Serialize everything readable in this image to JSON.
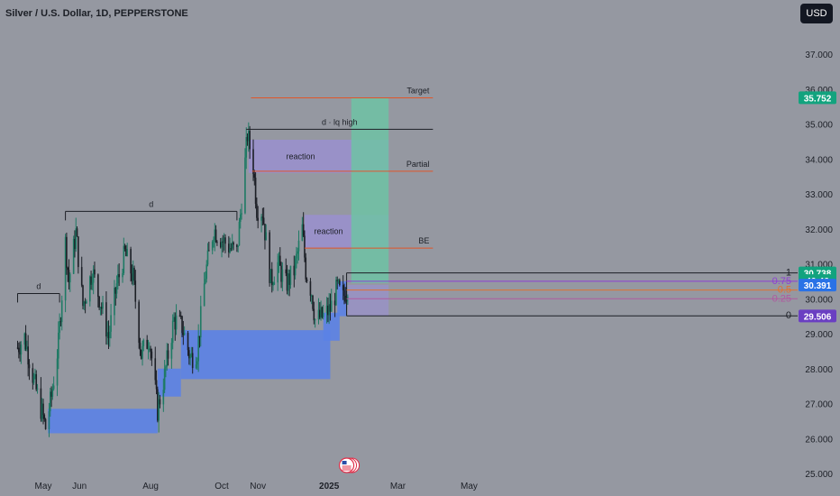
{
  "header": {
    "title": "Silver / U.S. Dollar, 1D, PEPPERSTONE",
    "currency_button": "USD"
  },
  "colors": {
    "background": "#9598a1",
    "up_candle": "#1e7a64",
    "down_candle": "#1c1f26",
    "demand_zone": "#5b82e6",
    "reaction_zone": "#9b8fd6",
    "target_zone": "#6fc2a4",
    "orange_line": "#e0562a",
    "black_line": "#1c1f26",
    "fib_0.75": "#8e3fd3",
    "fib_0.5": "#e07030",
    "fib_0.25": "#b05aa0",
    "price_badge_green": "#12a37e",
    "price_badge_blue": "#2a72e6",
    "price_badge_purple": "#6a3fc2"
  },
  "chart_data": {
    "type": "candlestick",
    "title": "Silver / U.S. Dollar, 1D, PEPPERSTONE",
    "ylim": [
      25.0,
      38.0
    ],
    "y_ticks": [
      "25.000",
      "26.000",
      "27.000",
      "28.000",
      "29.000",
      "30.000",
      "31.000",
      "32.000",
      "33.000",
      "34.000",
      "35.000",
      "36.000",
      "37.000"
    ],
    "x_ticks": [
      {
        "label": "May",
        "date": "2024-05-01"
      },
      {
        "label": "Jun",
        "date": "2024-06-01"
      },
      {
        "label": "Aug",
        "date": "2024-08-01"
      },
      {
        "label": "Oct",
        "date": "2024-10-01"
      },
      {
        "label": "Nov",
        "date": "2024-11-01"
      },
      {
        "label": "2025",
        "date": "2025-01-01"
      },
      {
        "label": "Mar",
        "date": "2025-03-01"
      },
      {
        "label": "May",
        "date": "2025-05-01"
      }
    ],
    "price_path": [
      [
        "2024-04-09",
        28.6
      ],
      [
        "2024-04-15",
        28.9
      ],
      [
        "2024-04-24",
        27.5
      ],
      [
        "2024-05-01",
        26.6
      ],
      [
        "2024-05-03",
        26.3
      ],
      [
        "2024-05-08",
        27.2
      ],
      [
        "2024-05-14",
        28.7
      ],
      [
        "2024-05-20",
        31.6
      ],
      [
        "2024-05-23",
        30.5
      ],
      [
        "2024-05-29",
        31.9
      ],
      [
        "2024-06-04",
        29.8
      ],
      [
        "2024-06-12",
        30.8
      ],
      [
        "2024-06-19",
        29.9
      ],
      [
        "2024-06-26",
        28.9
      ],
      [
        "2024-07-03",
        30.4
      ],
      [
        "2024-07-10",
        31.3
      ],
      [
        "2024-07-17",
        30.6
      ],
      [
        "2024-07-24",
        28.4
      ],
      [
        "2024-07-31",
        28.9
      ],
      [
        "2024-08-07",
        26.8
      ],
      [
        "2024-08-13",
        27.8
      ],
      [
        "2024-08-21",
        29.4
      ],
      [
        "2024-08-28",
        29.2
      ],
      [
        "2024-09-04",
        28.3
      ],
      [
        "2024-09-10",
        28.5
      ],
      [
        "2024-09-17",
        30.7
      ],
      [
        "2024-09-24",
        32.0
      ],
      [
        "2024-10-01",
        31.7
      ],
      [
        "2024-10-07",
        31.5
      ],
      [
        "2024-10-14",
        31.3
      ],
      [
        "2024-10-21",
        33.9
      ],
      [
        "2024-10-23",
        34.7
      ],
      [
        "2024-10-28",
        33.8
      ],
      [
        "2024-10-31",
        32.6
      ],
      [
        "2024-11-05",
        32.5
      ],
      [
        "2024-11-12",
        30.5
      ],
      [
        "2024-11-18",
        31.0
      ],
      [
        "2024-11-25",
        30.4
      ],
      [
        "2024-12-02",
        30.8
      ],
      [
        "2024-12-09",
        32.0
      ],
      [
        "2024-12-12",
        30.8
      ],
      [
        "2024-12-17",
        30.2
      ],
      [
        "2024-12-20",
        29.4
      ],
      [
        "2024-12-27",
        29.5
      ],
      [
        "2025-01-02",
        29.7
      ],
      [
        "2025-01-08",
        30.3
      ],
      [
        "2025-01-13",
        30.0
      ],
      [
        "2025-01-17",
        30.4
      ]
    ],
    "zones": [
      {
        "type": "demand",
        "from": "2024-05-05",
        "to": "2024-08-07",
        "low": 26.15,
        "high": 26.85
      },
      {
        "type": "demand",
        "from": "2024-08-07",
        "to": "2024-08-27",
        "low": 27.2,
        "high": 28.0
      },
      {
        "type": "demand",
        "from": "2024-08-27",
        "to": "2025-01-02",
        "low": 27.7,
        "high": 29.1
      },
      {
        "type": "demand",
        "from": "2024-12-27",
        "to": "2025-01-10",
        "low": 28.8,
        "high": 29.6
      },
      {
        "type": "demand",
        "from": "2025-01-08",
        "to": "2025-01-16",
        "low": 29.5,
        "high": 30.5
      },
      {
        "type": "reaction",
        "from": "2024-10-24",
        "to": "2025-02-21",
        "low": 33.6,
        "high": 34.55,
        "label": "reaction"
      },
      {
        "type": "reaction",
        "from": "2024-12-11",
        "to": "2025-02-21",
        "low": 31.45,
        "high": 32.4,
        "label": "reaction"
      },
      {
        "type": "target",
        "from": "2025-01-20",
        "to": "2025-02-21",
        "low": 30.45,
        "high": 35.75
      },
      {
        "type": "fib_box",
        "from": "2025-01-17",
        "to": "2025-02-21",
        "low": 29.51,
        "high": 30.4
      }
    ],
    "levels": [
      {
        "label": "d",
        "price": 32.5,
        "from": "2024-05-20",
        "to": "2024-10-14",
        "color": "black"
      },
      {
        "label": "d",
        "price": 30.15,
        "from": "2024-04-09",
        "to": "2024-05-15",
        "color": "black"
      },
      {
        "label": "d · lq high",
        "price": 34.85,
        "from": "2024-10-22",
        "to": "2025-03-31",
        "color": "black"
      },
      {
        "label": "Target",
        "price": 35.75,
        "from": "2024-10-26",
        "to": "2025-03-31",
        "color": "orange"
      },
      {
        "label": "Partial",
        "price": 33.65,
        "from": "2024-10-27",
        "to": "2025-03-31",
        "color": "orange"
      },
      {
        "label": "BE",
        "price": 31.45,
        "from": "2024-12-11",
        "to": "2025-03-31",
        "color": "orange"
      }
    ],
    "fib": {
      "from": "2025-01-16",
      "to": "2025-04-01",
      "levels": [
        {
          "label": "1",
          "price": 30.74
        },
        {
          "label": "0.75",
          "price": 30.5
        },
        {
          "label": "0.5",
          "price": 30.25
        },
        {
          "label": "0.25",
          "price": 30.0
        },
        {
          "label": "0",
          "price": 29.51
        }
      ]
    },
    "price_badges": [
      {
        "text": "35.752",
        "price": 35.752,
        "color": "green"
      },
      {
        "text": "30.738",
        "price": 30.738,
        "color": "green"
      },
      {
        "text": "46:46",
        "price": 30.52,
        "color": "green"
      },
      {
        "text": "30.391",
        "price": 30.391,
        "color": "blue"
      },
      {
        "text": "29.506",
        "price": 29.506,
        "color": "purple"
      }
    ]
  }
}
